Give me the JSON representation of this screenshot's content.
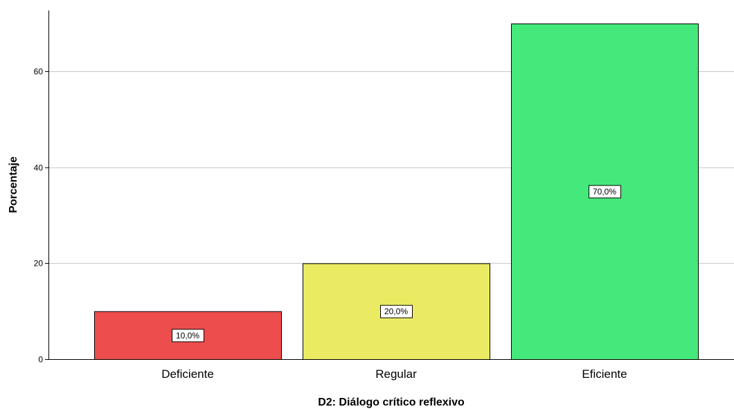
{
  "chart_data": {
    "type": "bar",
    "categories": [
      "Deficiente",
      "Regular",
      "Eficiente"
    ],
    "values": [
      10,
      20,
      70
    ],
    "data_labels": [
      "10,0%",
      "20,0%",
      "70,0%"
    ],
    "colors": [
      "#ee4d4d",
      "#ebeb63",
      "#45e87b"
    ],
    "xlabel": "D2: Diálogo crítico reflexivo",
    "ylabel": "Porcentaje",
    "yticks": [
      0,
      20,
      40,
      60
    ],
    "ylim": [
      0,
      72
    ],
    "grid": true
  }
}
